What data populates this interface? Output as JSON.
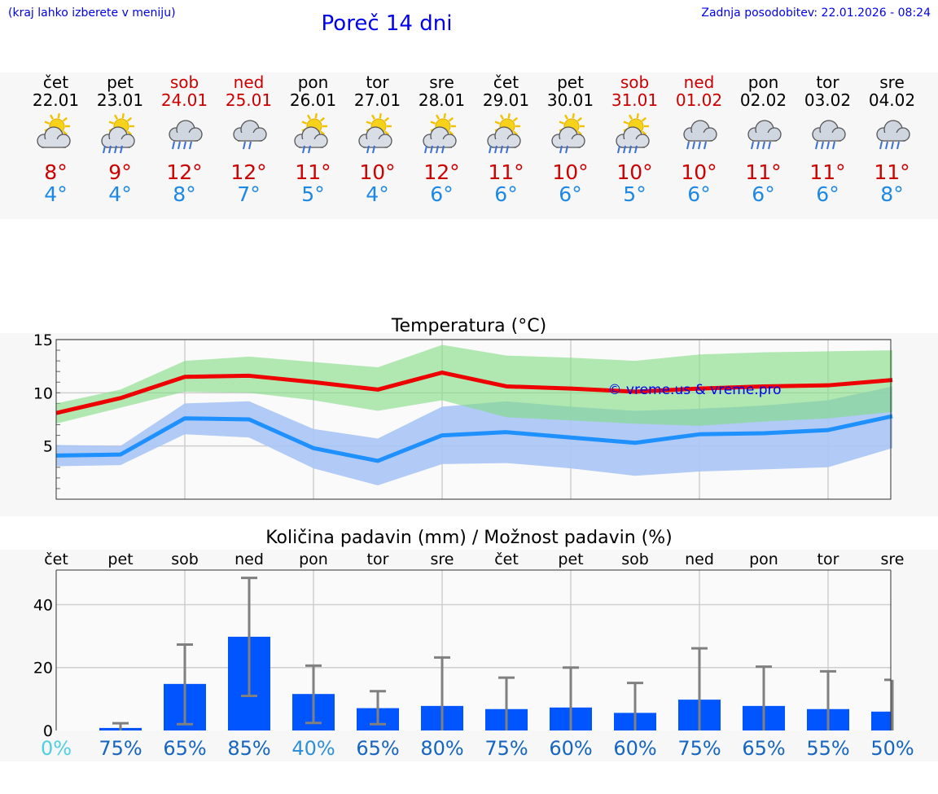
{
  "header": {
    "menu_hint": "(kraj lahko izberete v meniju)",
    "title": "Poreč 14 dni",
    "last_update": "Zadnja posodobitev: 22.01.2026 - 08:24"
  },
  "colors": {
    "link": "#0000ee",
    "weekend": "#cc0000",
    "tmax": "#cc0000",
    "tmin": "#1e88e5",
    "bar": "#0055ff",
    "tmax_band": "#a8e6a8",
    "tmin_band": "#a9c4f5"
  },
  "days": [
    {
      "name": "čet",
      "date": "22.01",
      "weekend": false,
      "icon": "partly-cloudy-icon",
      "tmax": "8°",
      "tmin": "4°"
    },
    {
      "name": "pet",
      "date": "23.01",
      "weekend": false,
      "icon": "sun-cloud-rain-icon",
      "tmax": "9°",
      "tmin": "4°"
    },
    {
      "name": "sob",
      "date": "24.01",
      "weekend": true,
      "icon": "cloud-rain-icon",
      "tmax": "12°",
      "tmin": "8°"
    },
    {
      "name": "ned",
      "date": "25.01",
      "weekend": true,
      "icon": "cloud-light-rain-icon",
      "tmax": "12°",
      "tmin": "7°"
    },
    {
      "name": "pon",
      "date": "26.01",
      "weekend": false,
      "icon": "sun-cloud-light-rain-icon",
      "tmax": "11°",
      "tmin": "5°"
    },
    {
      "name": "tor",
      "date": "27.01",
      "weekend": false,
      "icon": "sun-cloud-light-rain-icon",
      "tmax": "10°",
      "tmin": "4°"
    },
    {
      "name": "sre",
      "date": "28.01",
      "weekend": false,
      "icon": "sun-cloud-rain-icon",
      "tmax": "12°",
      "tmin": "6°"
    },
    {
      "name": "čet",
      "date": "29.01",
      "weekend": false,
      "icon": "sun-cloud-rain-icon",
      "tmax": "11°",
      "tmin": "6°"
    },
    {
      "name": "pet",
      "date": "30.01",
      "weekend": false,
      "icon": "sun-cloud-light-rain-icon",
      "tmax": "10°",
      "tmin": "6°"
    },
    {
      "name": "sob",
      "date": "31.01",
      "weekend": true,
      "icon": "sun-cloud-rain-icon",
      "tmax": "10°",
      "tmin": "5°"
    },
    {
      "name": "ned",
      "date": "01.02",
      "weekend": true,
      "icon": "cloud-rain-icon",
      "tmax": "10°",
      "tmin": "6°"
    },
    {
      "name": "pon",
      "date": "02.02",
      "weekend": false,
      "icon": "cloud-rain-icon",
      "tmax": "11°",
      "tmin": "6°"
    },
    {
      "name": "tor",
      "date": "03.02",
      "weekend": false,
      "icon": "cloud-rain-icon",
      "tmax": "11°",
      "tmin": "6°"
    },
    {
      "name": "sre",
      "date": "04.02",
      "weekend": false,
      "icon": "cloud-rain-icon",
      "tmax": "11°",
      "tmin": "8°"
    }
  ],
  "chart_data": [
    {
      "type": "line",
      "title": "Temperatura (°C)",
      "watermark": "© vreme.us & vreme.pro",
      "ylim": [
        0,
        15
      ],
      "yticks": [
        5,
        10,
        15
      ],
      "grid": true,
      "x": [
        0,
        1,
        2,
        3,
        4,
        5,
        6,
        7,
        8,
        9,
        10,
        11,
        12,
        13
      ],
      "series": [
        {
          "name": "Tmax",
          "values": [
            8.1,
            9.5,
            11.5,
            11.6,
            11.0,
            10.3,
            11.9,
            10.6,
            10.4,
            10.1,
            10.4,
            10.6,
            10.7,
            11.2
          ]
        },
        {
          "name": "Tmax band upper",
          "values": [
            9.0,
            10.3,
            13.0,
            13.4,
            12.9,
            12.4,
            14.5,
            13.5,
            13.3,
            13.0,
            13.6,
            13.8,
            13.9,
            14.0
          ]
        },
        {
          "name": "Tmax band lower",
          "values": [
            7.1,
            8.6,
            10.1,
            10.0,
            9.3,
            8.3,
            9.3,
            7.7,
            7.4,
            7.1,
            6.9,
            7.3,
            7.6,
            8.2
          ]
        },
        {
          "name": "Tmin",
          "values": [
            4.1,
            4.2,
            7.6,
            7.5,
            4.8,
            3.6,
            6.0,
            6.3,
            5.8,
            5.3,
            6.1,
            6.2,
            6.5,
            7.8
          ]
        },
        {
          "name": "Tmin band upper",
          "values": [
            5.1,
            5.0,
            9.0,
            9.2,
            6.6,
            5.7,
            8.7,
            9.2,
            8.7,
            8.3,
            8.5,
            8.8,
            9.3,
            10.6
          ]
        },
        {
          "name": "Tmin band lower",
          "values": [
            3.1,
            3.2,
            6.1,
            5.8,
            2.9,
            1.3,
            3.3,
            3.4,
            2.9,
            2.2,
            2.6,
            2.8,
            3.0,
            4.8
          ]
        }
      ]
    },
    {
      "type": "bar",
      "title": "Količina padavin (mm) / Možnost padavin (%)",
      "categories": [
        "čet",
        "pet",
        "sob",
        "ned",
        "pon",
        "tor",
        "sre",
        "čet",
        "pet",
        "sob",
        "ned",
        "pon",
        "tor",
        "sre"
      ],
      "values": [
        0,
        0.8,
        14.8,
        29.8,
        11.6,
        7.1,
        7.8,
        6.8,
        7.3,
        5.6,
        9.8,
        7.8,
        6.8,
        6.0
      ],
      "error_high": [
        0,
        2.3,
        27.3,
        48.5,
        20.6,
        12.5,
        23.2,
        16.8,
        20.0,
        15.1,
        26.1,
        20.3,
        18.8,
        16.1
      ],
      "error_low": [
        0,
        0,
        2.0,
        11.0,
        2.4,
        2.0,
        0,
        0,
        0,
        0,
        0,
        0,
        0,
        0
      ],
      "probability": [
        "0%",
        "75%",
        "65%",
        "85%",
        "40%",
        "65%",
        "80%",
        "75%",
        "60%",
        "60%",
        "75%",
        "65%",
        "55%",
        "50%"
      ],
      "ylim": [
        0,
        51
      ],
      "yticks": [
        "0",
        "20",
        "40"
      ],
      "ylabel": "",
      "xlabel": ""
    }
  ]
}
